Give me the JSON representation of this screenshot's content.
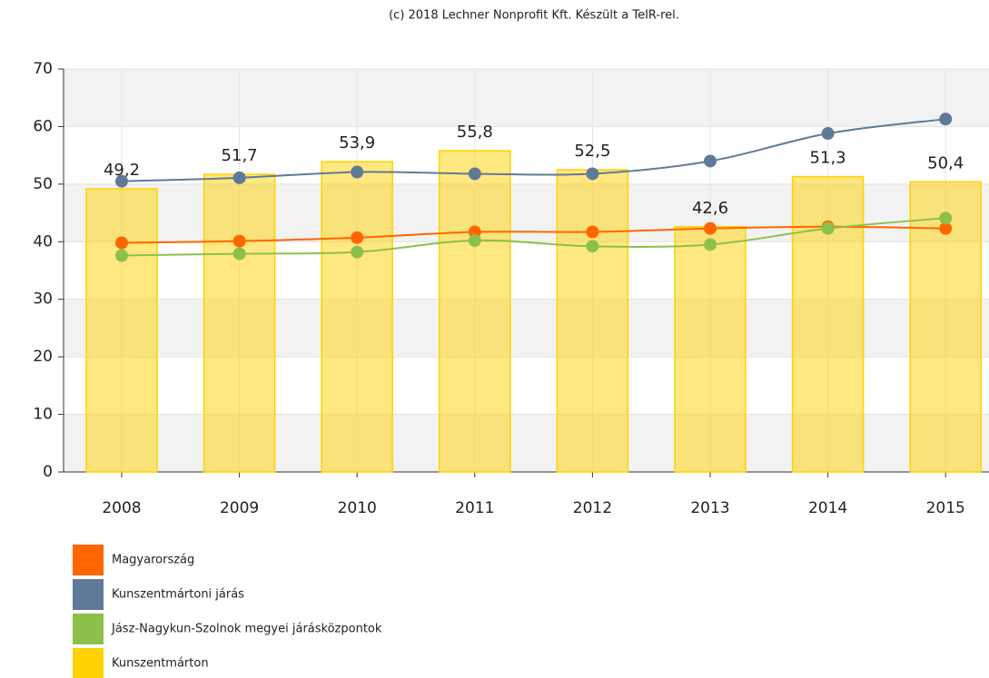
{
  "chart_data": {
    "type": "bar-line",
    "subtitle": "(c) 2018 Lechner Nonprofit Kft. Készült a TeIR-rel.",
    "categories": [
      "2008",
      "2009",
      "2010",
      "2011",
      "2012",
      "2013",
      "2014",
      "2015"
    ],
    "series": [
      {
        "name": "Magyarország",
        "color": "#ff6600",
        "kind": "line",
        "values": [
          39.8,
          40.1,
          40.7,
          41.7,
          41.7,
          42.3,
          42.6,
          42.3
        ]
      },
      {
        "name": "Kunszentmártoni járás",
        "color": "#5f7a99",
        "kind": "line",
        "values": [
          50.5,
          51.1,
          52.1,
          51.8,
          51.8,
          54.0,
          58.8,
          61.3
        ]
      },
      {
        "name": "Jász-Nagykun-Szolnok megyei járásközpontok",
        "color": "#8cc04b",
        "kind": "line",
        "values": [
          37.6,
          37.9,
          38.2,
          40.2,
          39.2,
          39.5,
          42.3,
          44.1
        ]
      },
      {
        "name": "Kunszentmárton",
        "color": "#ffd200",
        "kind": "bar",
        "values": [
          49.2,
          51.7,
          53.9,
          55.8,
          52.5,
          42.6,
          51.3,
          50.4
        ],
        "value_labels": [
          "49,2",
          "51,7",
          "53,9",
          "55,8",
          "52,5",
          "42,6",
          "51,3",
          "50,4"
        ]
      }
    ],
    "ylim": [
      0,
      70
    ],
    "yticks": [
      0,
      10,
      20,
      30,
      40,
      50,
      60,
      70
    ],
    "grid": true
  }
}
